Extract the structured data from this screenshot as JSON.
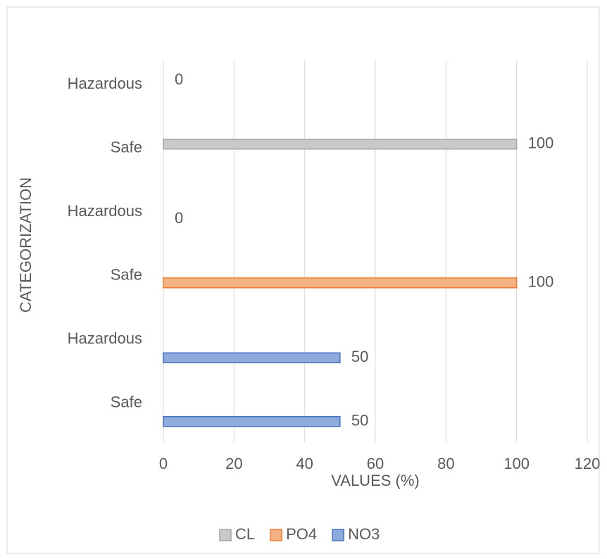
{
  "chart_data": {
    "type": "bar",
    "orientation": "horizontal",
    "x_label": "VALUES (%)",
    "y_label": "CATEGORIZATION",
    "categories": [
      "Safe",
      "Hazardous",
      "Safe",
      "Hazardous",
      "Safe",
      "Hazardous"
    ],
    "series": [
      {
        "name": "NO3",
        "color": "#8faadc",
        "edge": "#4472c4",
        "values": [
          50,
          50,
          null,
          null,
          null,
          null
        ]
      },
      {
        "name": "PO4",
        "color": "#f4b183",
        "edge": "#ed7d31",
        "values": [
          null,
          null,
          100,
          0,
          null,
          null
        ]
      },
      {
        "name": "CL",
        "color": "#c9c9c9",
        "edge": "#a5a5a5",
        "values": [
          null,
          null,
          null,
          null,
          100,
          0
        ]
      }
    ],
    "xlim": [
      0,
      120
    ],
    "xticks": [
      0,
      20,
      40,
      60,
      80,
      100,
      120
    ],
    "grid": true,
    "legend": "bottom"
  }
}
